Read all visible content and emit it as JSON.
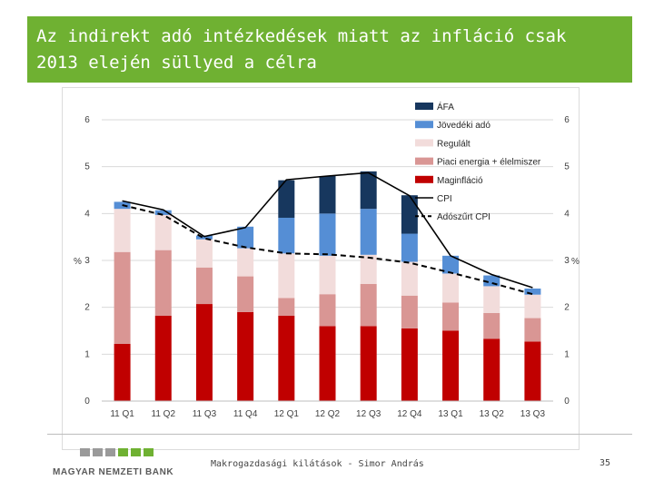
{
  "slide": {
    "title_line1": "Az indirekt adó intézkedések miatt az infláció csak",
    "title_line2": "2013 elején süllyed a célra",
    "footer_text": "Makrogazdasági kilátások - Simor András",
    "page_number": "35",
    "logo_text": "MAGYAR NEMZETI BANK",
    "colors": {
      "title_bg": "#6fb132",
      "logo_gray": "#9a9a9a",
      "logo_green": "#6fb132"
    }
  },
  "chart_data": {
    "type": "bar",
    "stacked": true,
    "categories": [
      "11 Q1",
      "11 Q2",
      "11 Q3",
      "11 Q4",
      "12 Q1",
      "12 Q2",
      "12 Q3",
      "12 Q4",
      "13 Q1",
      "13 Q2",
      "13 Q3"
    ],
    "series": [
      {
        "name": "Maginfláció",
        "color": "#c00000",
        "values": [
          1.22,
          1.82,
          2.07,
          1.9,
          1.82,
          1.6,
          1.6,
          1.55,
          1.5,
          1.33,
          1.27
        ]
      },
      {
        "name": "Piaci energia + élelmiszer",
        "color": "#d99694",
        "values": [
          1.96,
          1.4,
          0.78,
          0.76,
          0.38,
          0.68,
          0.9,
          0.7,
          0.6,
          0.55,
          0.5
        ]
      },
      {
        "name": "Regulált",
        "color": "#f2dcdb",
        "values": [
          0.92,
          0.75,
          0.6,
          0.6,
          0.95,
          0.82,
          0.62,
          0.72,
          0.62,
          0.57,
          0.5
        ]
      },
      {
        "name": "Jövedéki adó",
        "color": "#558ed5",
        "values": [
          0.15,
          0.1,
          0.08,
          0.46,
          0.76,
          0.9,
          0.98,
          0.6,
          0.38,
          0.23,
          0.13
        ]
      },
      {
        "name": "ÁFA",
        "color": "#17375e",
        "values": [
          0,
          0,
          0,
          0,
          0.8,
          0.8,
          0.8,
          0.82,
          0,
          0,
          0
        ]
      }
    ],
    "lines": [
      {
        "name": "CPI",
        "style": "solid",
        "color": "#000000",
        "values": [
          4.27,
          4.08,
          3.51,
          3.7,
          4.72,
          4.8,
          4.87,
          4.38,
          3.1,
          2.7,
          2.42
        ]
      },
      {
        "name": "Adószűrt CPI",
        "style": "dashed",
        "color": "#000000",
        "values": [
          4.18,
          3.97,
          3.47,
          3.28,
          3.15,
          3.13,
          3.06,
          2.95,
          2.74,
          2.52,
          2.28
        ]
      }
    ],
    "ylim": [
      0,
      6
    ],
    "yticks": [
      "0",
      "1",
      "2",
      "3",
      "4",
      "5",
      "6"
    ],
    "ylabel_left": "%",
    "ylabel_right": "%",
    "legend_position": "top-right",
    "legend": [
      {
        "label": "ÁFA",
        "type": "box",
        "color": "#17375e"
      },
      {
        "label": "Jövedéki adó",
        "type": "box",
        "color": "#558ed5"
      },
      {
        "label": "Regulált",
        "type": "box",
        "color": "#f2dcdb"
      },
      {
        "label": "Piaci energia + élelmiszer",
        "type": "box",
        "color": "#d99694"
      },
      {
        "label": "Maginfláció",
        "type": "box",
        "color": "#c00000"
      },
      {
        "label": "CPI",
        "type": "line",
        "color": "#000000"
      },
      {
        "label": "Adószűrt CPI",
        "type": "dash",
        "color": "#000000"
      }
    ],
    "grid": true
  }
}
